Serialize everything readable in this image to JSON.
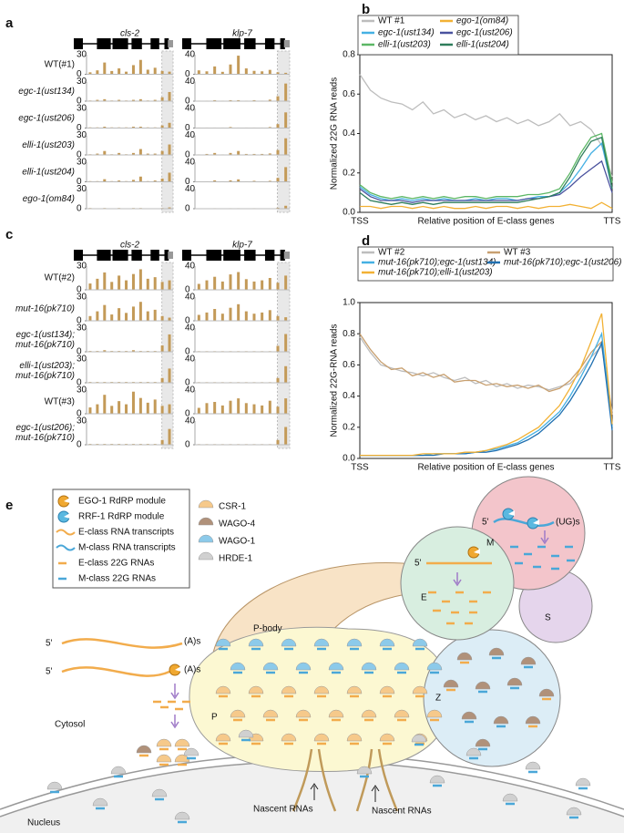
{
  "chart_data": [
    {
      "type": "track",
      "label": "a",
      "color": "#c39a58",
      "genes": [
        {
          "name": "cls-2",
          "ylim": [
            0,
            30
          ],
          "yticks": [
            0,
            30
          ]
        },
        {
          "name": "klp-7",
          "ylim": [
            0,
            40
          ],
          "yticks": [
            0,
            40
          ]
        }
      ],
      "series": [
        {
          "name": "WT(#1)",
          "values": [
            [
              3,
              6,
              18,
              5,
              9,
              4,
              14,
              22,
              7,
              10,
              5,
              4
            ],
            [
              8,
              6,
              16,
              5,
              20,
              38,
              12,
              7,
              6,
              9,
              4,
              3
            ]
          ]
        },
        {
          "name": "egc-1(ust134)",
          "values": [
            [
              1,
              2,
              3,
              1,
              2,
              1,
              2,
              3,
              1,
              2,
              6,
              14
            ],
            [
              1,
              1,
              2,
              1,
              2,
              2,
              1,
              2,
              1,
              3,
              10,
              36
            ]
          ]
        },
        {
          "name": "egc-1(ust206)",
          "values": [
            [
              1,
              1,
              2,
              1,
              1,
              1,
              2,
              2,
              1,
              1,
              4,
              8
            ],
            [
              1,
              1,
              1,
              1,
              2,
              1,
              1,
              1,
              1,
              2,
              8,
              32
            ]
          ]
        },
        {
          "name": "elli-1(ust203)",
          "values": [
            [
              1,
              2,
              6,
              1,
              3,
              1,
              3,
              9,
              2,
              2,
              6,
              16
            ],
            [
              1,
              2,
              4,
              1,
              4,
              8,
              2,
              2,
              2,
              3,
              10,
              34
            ]
          ]
        },
        {
          "name": "elli-1(ust204)",
          "values": [
            [
              1,
              1,
              4,
              1,
              2,
              1,
              3,
              8,
              1,
              2,
              5,
              14
            ],
            [
              1,
              1,
              3,
              1,
              3,
              5,
              1,
              2,
              1,
              2,
              8,
              30
            ]
          ]
        },
        {
          "name": "ego-1(om84)",
          "values": [
            [
              1,
              0,
              1,
              0,
              1,
              0,
              1,
              1,
              0,
              0,
              1,
              2
            ],
            [
              0,
              0,
              1,
              0,
              1,
              1,
              0,
              1,
              0,
              0,
              2,
              6
            ]
          ]
        }
      ]
    },
    {
      "type": "line",
      "label": "b",
      "y_label": "Normalized 22G RNA reads",
      "x_label": "Relative position of E-class genes",
      "xtick_labels": [
        "TSS",
        "TTS"
      ],
      "ylim": [
        0,
        0.8
      ],
      "yticks": [
        {
          "value": 0,
          "label": "0.0"
        },
        {
          "value": 0.2,
          "label": "0.2"
        },
        {
          "value": 0.4,
          "label": "0.4"
        },
        {
          "value": 0.6,
          "label": "0.6"
        },
        {
          "value": 0.8,
          "label": "0.8"
        }
      ],
      "series": [
        {
          "name": "WT #1",
          "color": "#bdbdbd",
          "values": [
            0.7,
            0.62,
            0.58,
            0.56,
            0.55,
            0.52,
            0.56,
            0.5,
            0.52,
            0.48,
            0.5,
            0.47,
            0.49,
            0.46,
            0.48,
            0.45,
            0.47,
            0.44,
            0.46,
            0.5,
            0.44,
            0.46,
            0.42,
            0.34,
            0.18
          ]
        },
        {
          "name": "ego-1(om84)",
          "color": "#f2b134",
          "values": [
            0.03,
            0.03,
            0.02,
            0.03,
            0.03,
            0.02,
            0.03,
            0.02,
            0.03,
            0.02,
            0.02,
            0.03,
            0.02,
            0.03,
            0.03,
            0.02,
            0.03,
            0.02,
            0.03,
            0.03,
            0.04,
            0.03,
            0.02,
            0.05,
            0.02
          ]
        },
        {
          "name": "egc-1(ust134)",
          "color": "#45b0e3",
          "values": [
            0.13,
            0.09,
            0.07,
            0.06,
            0.07,
            0.06,
            0.07,
            0.06,
            0.07,
            0.06,
            0.06,
            0.07,
            0.06,
            0.07,
            0.07,
            0.06,
            0.07,
            0.08,
            0.08,
            0.1,
            0.15,
            0.22,
            0.3,
            0.35,
            0.12
          ]
        },
        {
          "name": "egc-1(ust206)",
          "color": "#4a529e",
          "values": [
            0.12,
            0.08,
            0.06,
            0.06,
            0.06,
            0.05,
            0.06,
            0.06,
            0.06,
            0.06,
            0.06,
            0.06,
            0.06,
            0.06,
            0.06,
            0.06,
            0.07,
            0.07,
            0.08,
            0.09,
            0.13,
            0.18,
            0.22,
            0.26,
            0.1
          ]
        },
        {
          "name": "elli-1(ust203)",
          "color": "#5cb765",
          "values": [
            0.14,
            0.1,
            0.08,
            0.07,
            0.08,
            0.07,
            0.08,
            0.07,
            0.08,
            0.07,
            0.08,
            0.08,
            0.07,
            0.08,
            0.08,
            0.08,
            0.09,
            0.09,
            0.1,
            0.12,
            0.2,
            0.3,
            0.38,
            0.4,
            0.15
          ]
        },
        {
          "name": "elli-1(ust204)",
          "color": "#2e7d5b",
          "values": [
            0.1,
            0.06,
            0.05,
            0.04,
            0.05,
            0.04,
            0.05,
            0.04,
            0.05,
            0.05,
            0.05,
            0.05,
            0.05,
            0.05,
            0.05,
            0.05,
            0.06,
            0.07,
            0.08,
            0.1,
            0.18,
            0.28,
            0.36,
            0.38,
            0.12
          ]
        }
      ]
    },
    {
      "type": "track",
      "label": "c",
      "color": "#c39a58",
      "genes": [
        {
          "name": "cls-2",
          "ylim": [
            0,
            30
          ],
          "yticks": [
            0,
            30
          ]
        },
        {
          "name": "klp-7",
          "ylim": [
            0,
            40
          ],
          "yticks": [
            0,
            40
          ]
        }
      ],
      "series": [
        {
          "name": [
            "WT(#2)"
          ],
          "values": [
            [
              8,
              14,
              22,
              10,
              18,
              12,
              20,
              26,
              14,
              16,
              10,
              12
            ],
            [
              10,
              16,
              22,
              14,
              26,
              30,
              18,
              14,
              16,
              20,
              12,
              24
            ]
          ]
        },
        {
          "name": [
            "mut-16(pk710)"
          ],
          "values": [
            [
              6,
              12,
              20,
              8,
              16,
              10,
              18,
              24,
              12,
              14,
              6,
              4
            ],
            [
              10,
              14,
              20,
              12,
              22,
              28,
              16,
              12,
              14,
              18,
              8,
              6
            ]
          ]
        },
        {
          "name": [
            "egc-1(ust134);",
            "mut-16(pk710)"
          ],
          "values": [
            [
              1,
              1,
              2,
              1,
              1,
              1,
              2,
              1,
              1,
              1,
              8,
              22
            ],
            [
              1,
              1,
              1,
              1,
              1,
              1,
              1,
              1,
              1,
              1,
              10,
              30
            ]
          ]
        },
        {
          "name": [
            "elli-1(ust203);",
            "mut-16(pk710)"
          ],
          "values": [
            [
              1,
              1,
              1,
              1,
              1,
              1,
              1,
              1,
              1,
              1,
              6,
              18
            ],
            [
              1,
              1,
              1,
              1,
              1,
              1,
              1,
              1,
              1,
              1,
              8,
              28
            ]
          ]
        },
        {
          "name": [
            "WT(#3)"
          ],
          "values": [
            [
              8,
              12,
              24,
              10,
              16,
              12,
              28,
              20,
              14,
              18,
              10,
              12
            ],
            [
              10,
              18,
              20,
              14,
              22,
              26,
              18,
              16,
              14,
              22,
              12,
              26
            ]
          ]
        },
        {
          "name": [
            "egc-1(ust206);",
            "mut-16(pk710)"
          ],
          "values": [
            [
              1,
              1,
              1,
              1,
              1,
              1,
              1,
              1,
              1,
              1,
              6,
              20
            ],
            [
              1,
              1,
              1,
              1,
              1,
              1,
              1,
              1,
              1,
              1,
              8,
              30
            ]
          ]
        }
      ]
    },
    {
      "type": "line",
      "label": "d",
      "y_label": "Normalized 22G-RNA reads",
      "x_label": "Relative position of E-class genes",
      "xtick_labels": [
        "TSS",
        "TTS"
      ],
      "ylim": [
        0,
        1.0
      ],
      "yticks": [
        {
          "value": 0,
          "label": "0.0"
        },
        {
          "value": 0.2,
          "label": "0.2"
        },
        {
          "value": 0.4,
          "label": "0.4"
        },
        {
          "value": 0.6,
          "label": "0.6"
        },
        {
          "value": 0.8,
          "label": "0.8"
        },
        {
          "value": 1.0,
          "label": "1.0"
        }
      ],
      "series": [
        {
          "name": "WT #2",
          "color": "#bdbdbd",
          "values": [
            0.78,
            0.68,
            0.6,
            0.58,
            0.56,
            0.55,
            0.53,
            0.55,
            0.52,
            0.5,
            0.52,
            0.48,
            0.5,
            0.46,
            0.48,
            0.45,
            0.47,
            0.46,
            0.44,
            0.46,
            0.48,
            0.55,
            0.65,
            0.72,
            0.3
          ]
        },
        {
          "name": "WT #3",
          "color": "#c8a070",
          "values": [
            0.8,
            0.7,
            0.62,
            0.57,
            0.58,
            0.53,
            0.55,
            0.52,
            0.54,
            0.49,
            0.5,
            0.5,
            0.47,
            0.48,
            0.46,
            0.47,
            0.45,
            0.47,
            0.43,
            0.45,
            0.5,
            0.58,
            0.68,
            0.75,
            0.28
          ]
        },
        {
          "name": "mut-16(pk710);egc-1(ust134)",
          "color": "#45b0e3",
          "values": [
            0.02,
            0.02,
            0.02,
            0.02,
            0.02,
            0.02,
            0.02,
            0.03,
            0.03,
            0.03,
            0.03,
            0.04,
            0.05,
            0.06,
            0.08,
            0.1,
            0.14,
            0.18,
            0.24,
            0.3,
            0.4,
            0.52,
            0.65,
            0.8,
            0.2
          ]
        },
        {
          "name": "mut-16(pk710);egc-1(ust206)",
          "color": "#1f6fb0",
          "values": [
            0.02,
            0.02,
            0.02,
            0.02,
            0.02,
            0.02,
            0.02,
            0.02,
            0.03,
            0.03,
            0.03,
            0.04,
            0.04,
            0.05,
            0.07,
            0.09,
            0.12,
            0.16,
            0.22,
            0.28,
            0.37,
            0.48,
            0.6,
            0.74,
            0.18
          ]
        },
        {
          "name": "mut-16(pk710);elli-1(ust203)",
          "color": "#f2b134",
          "values": [
            0.02,
            0.02,
            0.02,
            0.02,
            0.02,
            0.02,
            0.03,
            0.03,
            0.03,
            0.03,
            0.04,
            0.04,
            0.05,
            0.07,
            0.09,
            0.12,
            0.16,
            0.2,
            0.27,
            0.34,
            0.45,
            0.58,
            0.75,
            0.93,
            0.22
          ]
        }
      ]
    }
  ],
  "diagram": {
    "label": "e",
    "legend": [
      "EGO-1 RdRP module",
      "RRF-1 RdRP module",
      "E-class RNA transcripts",
      "M-class RNA transcripts",
      "E-class 22G RNAs",
      "M-class 22G RNAs"
    ],
    "proteins": [
      "CSR-1",
      "WAGO-4",
      "WAGO-1",
      "HRDE-1"
    ],
    "p_body": "P-body",
    "p": "P",
    "e": "E",
    "m": "M",
    "z": "Z",
    "s": "S",
    "cytosol": "Cytosol",
    "nucleus": "Nucleus",
    "nascent": "Nascent RNAs",
    "five_prime": "5'",
    "poly_a": "(A)s",
    "ug": "(UG)s"
  }
}
